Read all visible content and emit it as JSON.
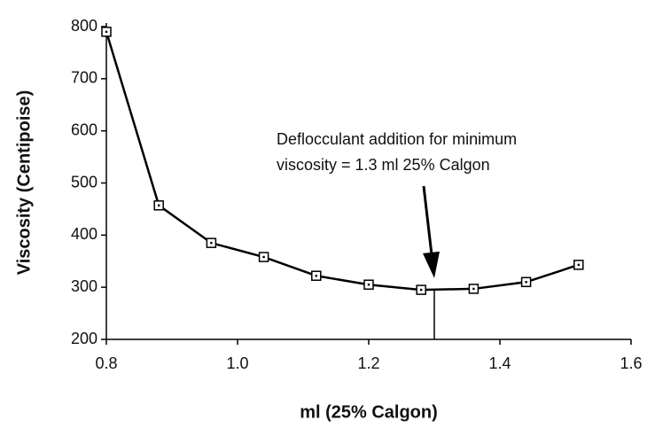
{
  "chart_data": {
    "type": "line",
    "x_label": "ml (25% Calgon)",
    "y_label": "Viscosity (Centipoise)",
    "x": [
      0.8,
      0.88,
      0.96,
      1.04,
      1.12,
      1.2,
      1.28,
      1.36,
      1.44,
      1.52
    ],
    "series": [
      {
        "name": "Viscosity",
        "color": "#000000",
        "values": [
          790,
          457,
          385,
          358,
          322,
          305,
          295,
          297,
          310,
          343
        ]
      }
    ],
    "xlim": [
      0.8,
      1.6
    ],
    "xticks": [
      0.8,
      {
        "value": 1,
        "label": "1.0"
      },
      1.2,
      1.4,
      1.6
    ],
    "ylim": [
      200,
      800
    ],
    "yticks": [
      200,
      300,
      400,
      500,
      600,
      700,
      800
    ],
    "annotation": {
      "text": [
        "Deflocculant addition for minimum",
        "viscosity = 1.3 ml 25% Calgon"
      ],
      "x": 1.3,
      "y": 297
    }
  }
}
